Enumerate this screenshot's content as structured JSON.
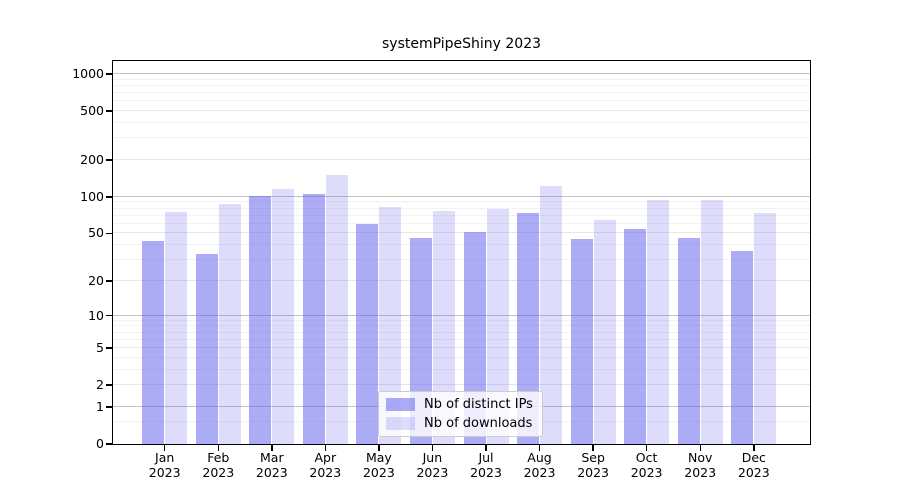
{
  "chart_data": {
    "type": "bar",
    "title": "systemPipeShiny 2023",
    "yscale": "log1p",
    "ylim": [
      0,
      1000
    ],
    "yticks": [
      0,
      1,
      2,
      5,
      10,
      20,
      50,
      100,
      200,
      500,
      1000
    ],
    "grid": {
      "major": [
        1,
        10,
        100,
        1000
      ],
      "mid": [
        2,
        5,
        20,
        50,
        200,
        500
      ],
      "minor": [
        0.5,
        3,
        4,
        6,
        7,
        8,
        9,
        30,
        40,
        60,
        70,
        80,
        90,
        300,
        400,
        600,
        700,
        800,
        900
      ]
    },
    "categories": [
      "Jan",
      "Feb",
      "Mar",
      "Apr",
      "May",
      "Jun",
      "Jul",
      "Aug",
      "Sep",
      "Oct",
      "Nov",
      "Dec"
    ],
    "x_year_label": "2023",
    "series": [
      {
        "name": "Nb of distinct IPs",
        "color": "rgba(102,102,238,0.55)",
        "values": [
          43,
          34,
          102,
          106,
          60,
          46,
          51,
          74,
          45,
          54,
          46,
          36
        ]
      },
      {
        "name": "Nb of downloads",
        "color": "rgba(102,102,238,0.22)",
        "values": [
          75,
          87,
          117,
          152,
          83,
          77,
          80,
          122,
          65,
          95,
          95,
          74
        ]
      }
    ],
    "legend_position": "lower-center-inside"
  }
}
